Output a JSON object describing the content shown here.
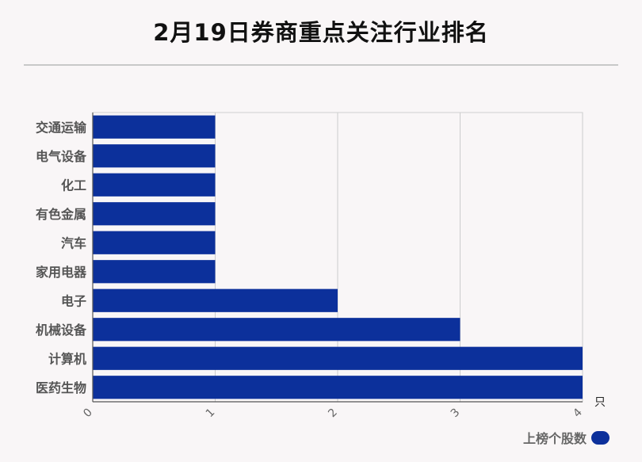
{
  "title": "2月19日券商重点关注行业排名",
  "chart_data": {
    "type": "bar",
    "orientation": "horizontal",
    "categories": [
      "交通运输",
      "电气设备",
      "化工",
      "有色金属",
      "汽车",
      "家用电器",
      "电子",
      "机械设备",
      "计算机",
      "医药生物"
    ],
    "series": [
      {
        "name": "上榜个股数",
        "values": [
          1,
          1,
          1,
          1,
          1,
          1,
          2,
          3,
          4,
          4
        ],
        "color": "#0c309b"
      }
    ],
    "xlim": [
      0,
      4
    ],
    "xticks": [
      "0",
      "1",
      "2",
      "3",
      "4"
    ],
    "x_unit": "只",
    "grid": true,
    "legend_position": "bottom-right"
  }
}
